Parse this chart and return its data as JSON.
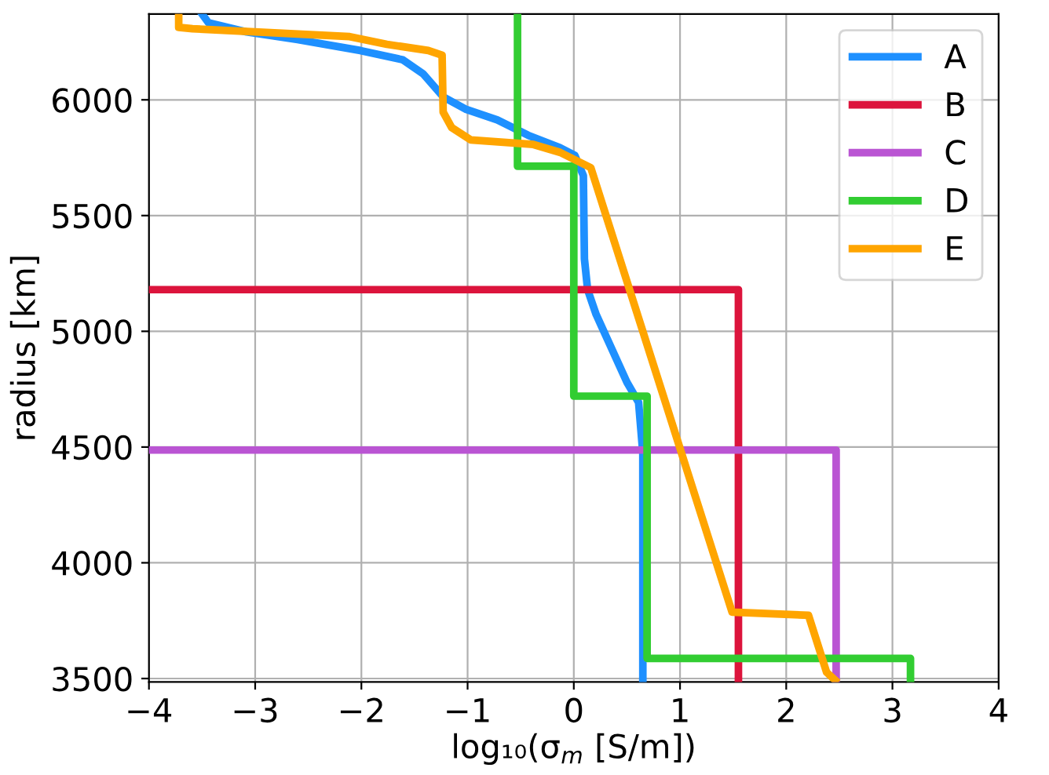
{
  "chart_data": {
    "type": "line",
    "xlabel": "log₁₀(σ$_{m}$ [S/m])",
    "ylabel": "radius [km]",
    "xlim": [
      -4,
      4
    ],
    "xticks": [
      -4,
      -3,
      -2,
      -1,
      0,
      1,
      2,
      3,
      4
    ],
    "ylim": [
      3485,
      6371
    ],
    "yticks": [
      3500,
      4000,
      4500,
      5000,
      5500,
      6000
    ],
    "grid": true,
    "legend": "top right",
    "marker": "none",
    "line_style": "solid",
    "series": [
      {
        "name": "A",
        "color": "#1e90ff",
        "x": [
          -3.5,
          -3.44,
          -3.08,
          -2.6,
          -2.01,
          -1.61,
          -1.42,
          -1.23,
          -1.02,
          -0.72,
          -0.43,
          -0.13,
          0.01,
          0.09,
          0.1,
          0.13,
          0.21,
          0.5,
          0.61,
          0.65,
          0.65
        ],
        "values": [
          6371,
          6333,
          6293,
          6260,
          6213,
          6173,
          6113,
          6013,
          5960,
          5913,
          5847,
          5793,
          5760,
          5673,
          5313,
          5180,
          5073,
          4780,
          4693,
          4473,
          3485
        ]
      },
      {
        "name": "B",
        "color": "#dc143c",
        "x": [
          -4,
          1.55,
          1.55
        ],
        "values": [
          5180,
          5180,
          3485
        ]
      },
      {
        "name": "C",
        "color": "#ba55d3",
        "x": [
          -4,
          2.47,
          2.47
        ],
        "values": [
          4487,
          4487,
          3485
        ]
      },
      {
        "name": "D",
        "color": "#32cd32",
        "x": [
          -0.53,
          -0.53,
          0.0,
          0.0,
          0.69,
          0.69,
          3.17,
          3.17
        ],
        "values": [
          6371,
          5713,
          5713,
          4720,
          4720,
          3587,
          3587,
          3485
        ]
      },
      {
        "name": "E",
        "color": "#ffa500",
        "x": [
          -3.72,
          -3.72,
          -3.59,
          -2.11,
          -1.76,
          -1.37,
          -1.24,
          -1.23,
          -1.15,
          -0.97,
          -0.38,
          -0.13,
          0.16,
          1.49,
          2.21,
          2.38,
          2.46
        ],
        "values": [
          6371,
          6313,
          6307,
          6273,
          6240,
          6213,
          6193,
          5947,
          5880,
          5827,
          5807,
          5773,
          5707,
          3787,
          3773,
          3527,
          3493
        ]
      }
    ]
  }
}
